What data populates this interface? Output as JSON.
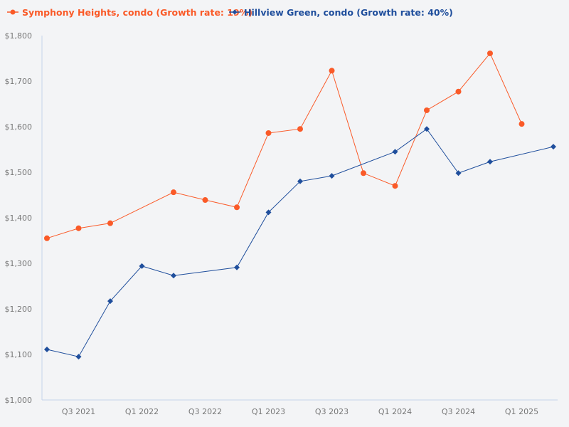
{
  "chart_data": {
    "type": "line",
    "title": "",
    "xlabel": "",
    "ylabel": "",
    "ylim": [
      1000,
      1800
    ],
    "yticks": [
      "$1,000",
      "$1,100",
      "$1,200",
      "$1,300",
      "$1,400",
      "$1,500",
      "$1,600",
      "$1,700",
      "$1,800"
    ],
    "ytick_values": [
      1000,
      1100,
      1200,
      1300,
      1400,
      1500,
      1600,
      1700,
      1800
    ],
    "categories": [
      "Q2 2021",
      "Q3 2021",
      "Q4 2021",
      "Q1 2022",
      "Q2 2022",
      "Q3 2022",
      "Q4 2022",
      "Q1 2023",
      "Q2 2023",
      "Q3 2023",
      "Q4 2023",
      "Q1 2024",
      "Q2 2024",
      "Q3 2024",
      "Q4 2024",
      "Q1 2025",
      "Q2 2025"
    ],
    "xtick_labels": [
      "Q3 2021",
      "Q1 2022",
      "Q3 2022",
      "Q1 2023",
      "Q3 2023",
      "Q1 2024",
      "Q3 2024",
      "Q1 2025"
    ],
    "grid": false,
    "legend_placement": "top-left",
    "series": [
      {
        "name": "Symphony Heights, condo (Growth rate: 19%)",
        "color": "#fa5a28",
        "marker": "circle",
        "values": [
          1355,
          1377,
          1388,
          null,
          1456,
          1439,
          1423,
          1586,
          1595,
          1723,
          1498,
          1470,
          1636,
          1677,
          1761,
          1606,
          null
        ]
      },
      {
        "name": "Hillview Green, condo (Growth rate: 40%)",
        "color": "#1f4e9c",
        "marker": "diamond",
        "values": [
          1111,
          1095,
          1217,
          1294,
          1273,
          null,
          1291,
          1412,
          1480,
          1492,
          null,
          1545,
          1595,
          1498,
          1523,
          null,
          1556
        ]
      }
    ]
  }
}
